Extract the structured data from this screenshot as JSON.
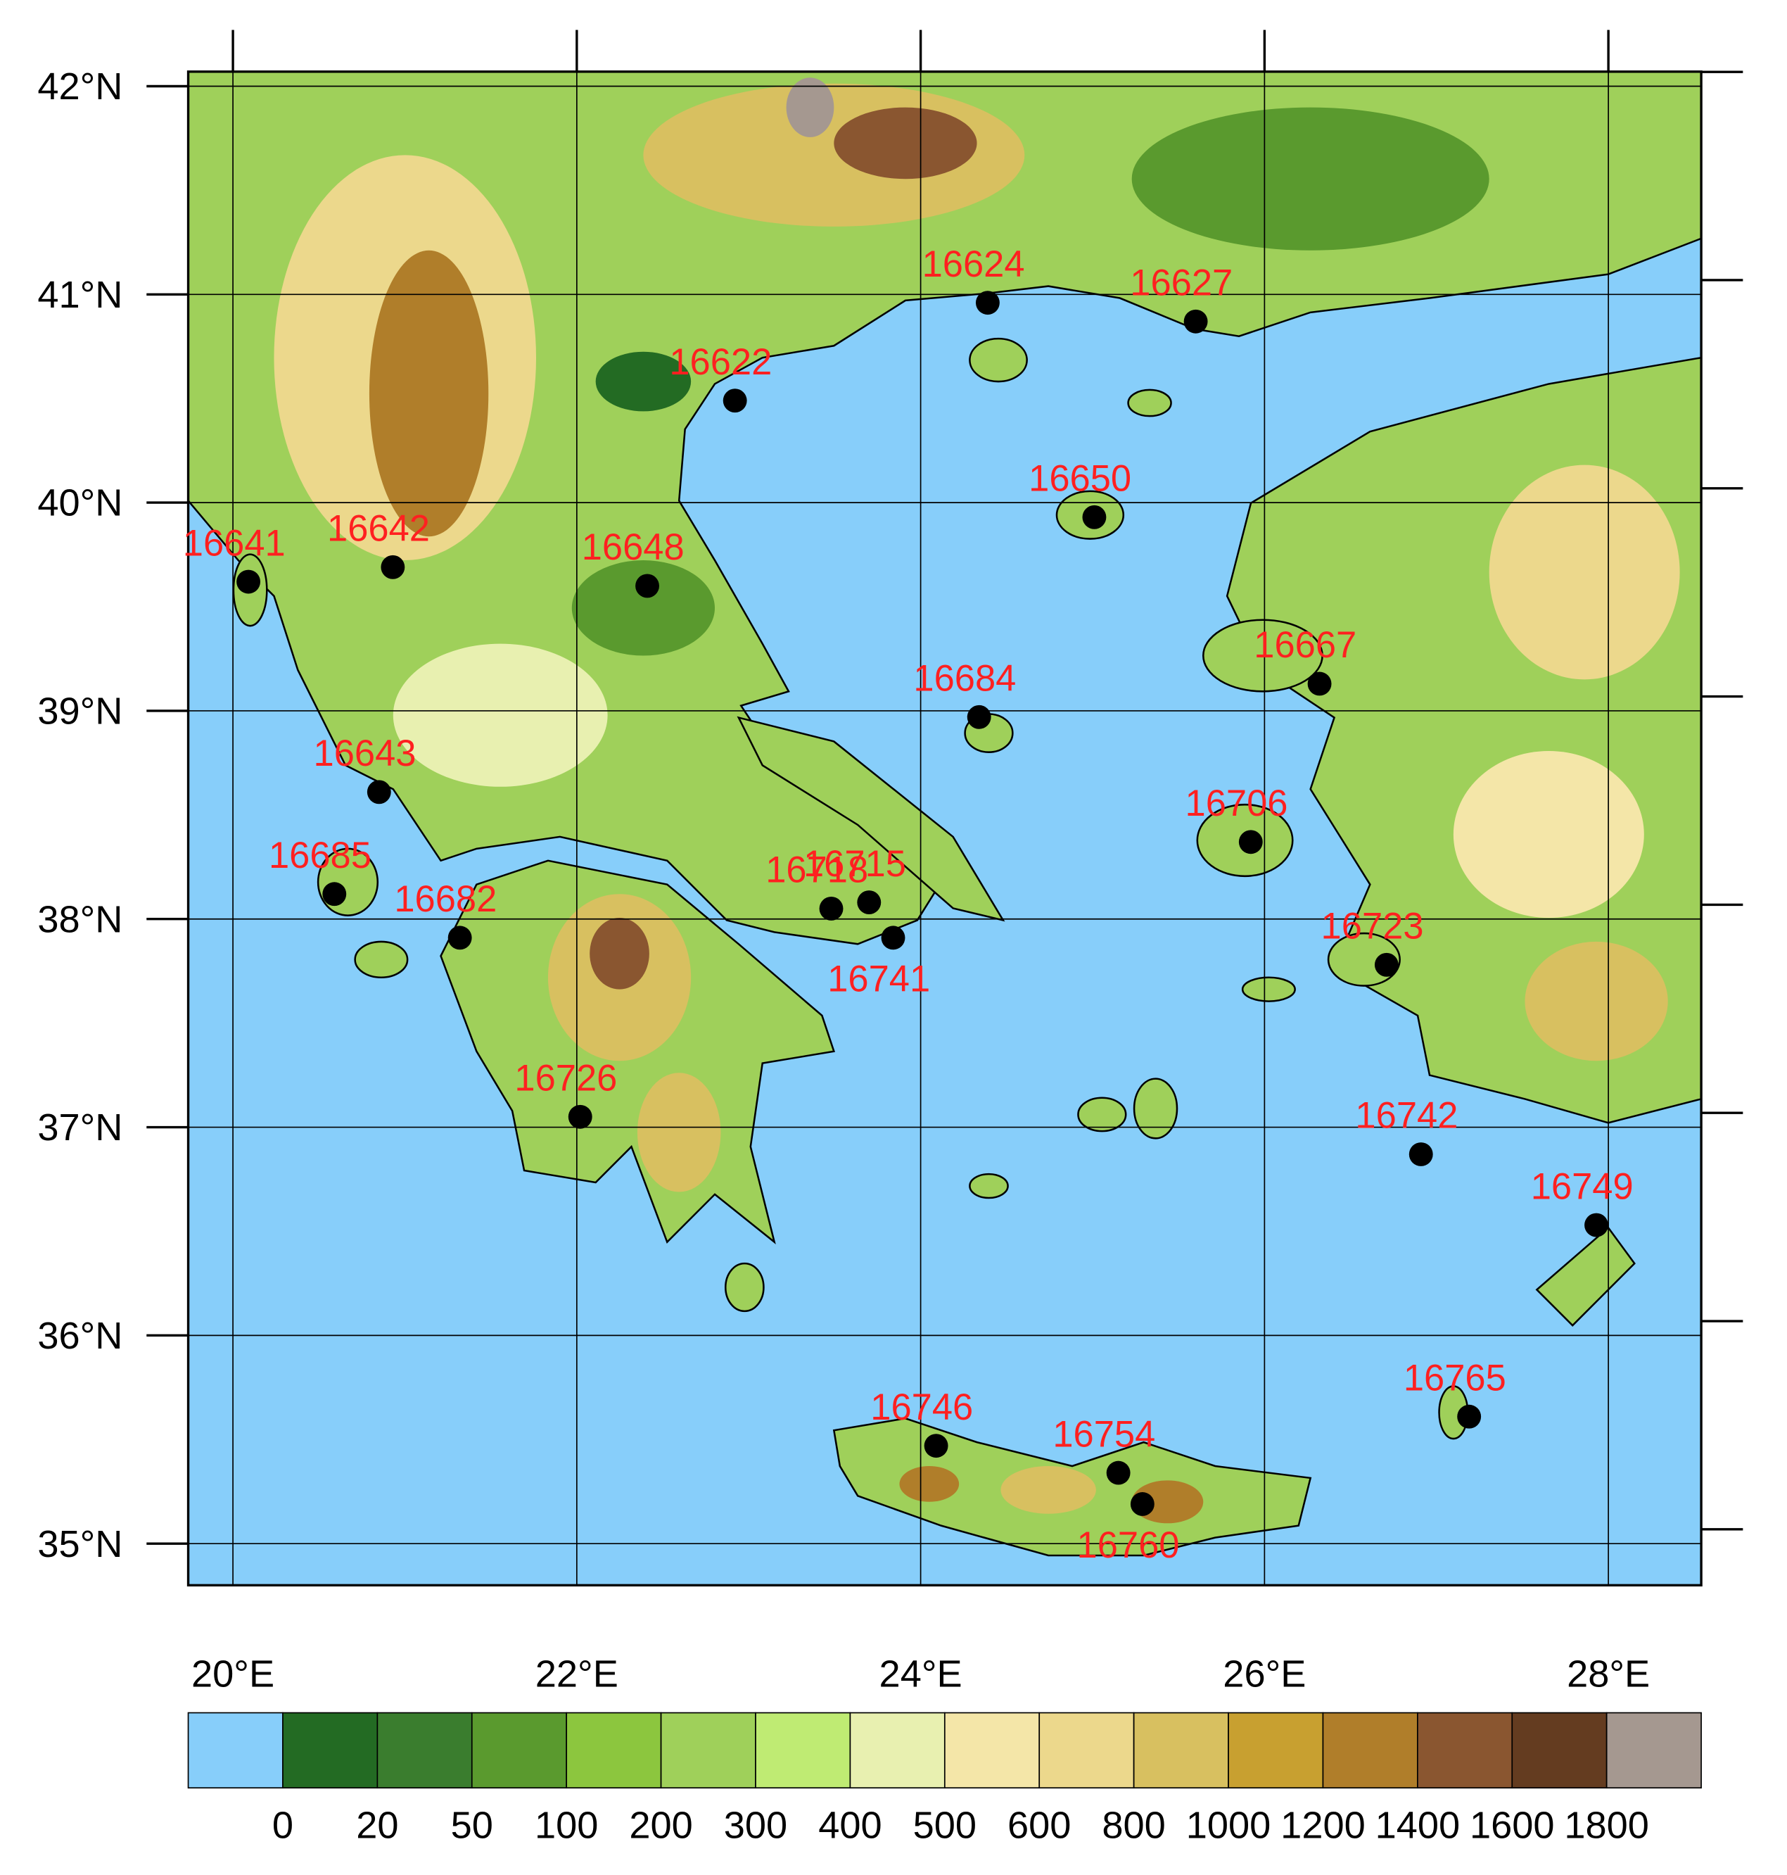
{
  "chart_data": {
    "type": "map",
    "xlim": [
      19.74,
      28.54
    ],
    "ylim": [
      34.8,
      42.07
    ],
    "xticks": [
      {
        "value": 20,
        "label": "20°E"
      },
      {
        "value": 22,
        "label": "22°E"
      },
      {
        "value": 24,
        "label": "24°E"
      },
      {
        "value": 26,
        "label": "26°E"
      },
      {
        "value": 28,
        "label": "28°E"
      }
    ],
    "yticks": [
      {
        "value": 35,
        "label": "35°N"
      },
      {
        "value": 36,
        "label": "36°N"
      },
      {
        "value": 37,
        "label": "37°N"
      },
      {
        "value": 38,
        "label": "38°N"
      },
      {
        "value": 39,
        "label": "39°N"
      },
      {
        "value": 40,
        "label": "40°N"
      },
      {
        "value": 41,
        "label": "41°N"
      },
      {
        "value": 42,
        "label": "42°N"
      }
    ],
    "grid": true,
    "marker_color": "#000000",
    "label_color": "#ff2020",
    "stations": [
      {
        "id": "16624",
        "lon": 24.39,
        "lat": 40.96
      },
      {
        "id": "16627",
        "lon": 25.6,
        "lat": 40.87
      },
      {
        "id": "16622",
        "lon": 22.92,
        "lat": 40.49
      },
      {
        "id": "16650",
        "lon": 25.01,
        "lat": 39.93
      },
      {
        "id": "16641",
        "lon": 20.09,
        "lat": 39.62
      },
      {
        "id": "16642",
        "lon": 20.93,
        "lat": 39.69
      },
      {
        "id": "16648",
        "lon": 22.41,
        "lat": 39.6
      },
      {
        "id": "16667",
        "lon": 26.32,
        "lat": 39.13
      },
      {
        "id": "16684",
        "lon": 24.34,
        "lat": 38.97
      },
      {
        "id": "16643",
        "lon": 20.85,
        "lat": 38.61
      },
      {
        "id": "16706",
        "lon": 25.92,
        "lat": 38.37
      },
      {
        "id": "16685",
        "lon": 20.59,
        "lat": 38.12
      },
      {
        "id": "16682",
        "lon": 21.32,
        "lat": 37.91
      },
      {
        "id": "16718",
        "lon": 23.48,
        "lat": 38.05
      },
      {
        "id": "16715",
        "lon": 23.7,
        "lat": 38.08
      },
      {
        "id": "16741",
        "lon": 23.84,
        "lat": 37.91
      },
      {
        "id": "16723",
        "lon": 26.71,
        "lat": 37.78
      },
      {
        "id": "16726",
        "lon": 22.02,
        "lat": 37.05
      },
      {
        "id": "16742",
        "lon": 26.91,
        "lat": 36.87
      },
      {
        "id": "16749",
        "lon": 27.93,
        "lat": 36.53
      },
      {
        "id": "16765",
        "lon": 27.19,
        "lat": 35.61
      },
      {
        "id": "16746",
        "lon": 24.09,
        "lat": 35.47
      },
      {
        "id": "16754",
        "lon": 25.15,
        "lat": 35.34
      },
      {
        "id": "16760",
        "lon": 25.29,
        "lat": 35.19
      }
    ],
    "colorbar": {
      "levels": [
        0,
        20,
        50,
        100,
        200,
        300,
        400,
        500,
        600,
        800,
        1000,
        1200,
        1400,
        1600,
        1800
      ],
      "colors": [
        "#87cefa",
        "#236b23",
        "#3a7d2e",
        "#5a9a2e",
        "#8cc63e",
        "#9fd05a",
        "#bfeb73",
        "#e8f0b0",
        "#f4e6a8",
        "#ecd88c",
        "#d8c060",
        "#c8a030",
        "#b07e2a",
        "#8a5630",
        "#643c20",
        "#a59890"
      ]
    }
  }
}
